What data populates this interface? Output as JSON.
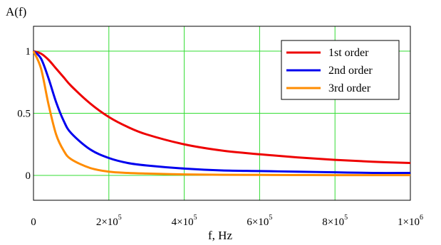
{
  "chart_data": {
    "type": "line",
    "title": "",
    "ylabel": "A(f)",
    "xlabel": "f, Hz",
    "xlim": [
      0,
      1000000
    ],
    "ylim": [
      -0.2,
      1.2
    ],
    "grid": true,
    "legend_position": "top-right",
    "x_ticks": [
      {
        "value": 0,
        "mantissa": "0",
        "exponent": ""
      },
      {
        "value": 200000,
        "mantissa": "2×10",
        "exponent": "5"
      },
      {
        "value": 400000,
        "mantissa": "4×10",
        "exponent": "5"
      },
      {
        "value": 600000,
        "mantissa": "6×10",
        "exponent": "5"
      },
      {
        "value": 800000,
        "mantissa": "8×10",
        "exponent": "5"
      },
      {
        "value": 1000000,
        "mantissa": "1×10",
        "exponent": "6"
      }
    ],
    "y_ticks": [
      {
        "value": 0,
        "label": "0"
      },
      {
        "value": 0.5,
        "label": "0.5"
      },
      {
        "value": 1,
        "label": "1"
      }
    ],
    "x": [
      0,
      20000,
      40000,
      60000,
      80000,
      100000,
      150000,
      200000,
      250000,
      300000,
      400000,
      500000,
      600000,
      700000,
      800000,
      900000,
      1000000
    ],
    "series": [
      {
        "name": "1st order",
        "color": "#ee0000",
        "values": [
          1.0,
          0.98,
          0.93,
          0.86,
          0.79,
          0.72,
          0.58,
          0.47,
          0.39,
          0.33,
          0.25,
          0.2,
          0.17,
          0.145,
          0.125,
          0.11,
          0.1
        ]
      },
      {
        "name": "2nd order",
        "color": "#0000ee",
        "values": [
          1.0,
          0.94,
          0.78,
          0.59,
          0.44,
          0.34,
          0.21,
          0.14,
          0.1,
          0.08,
          0.055,
          0.04,
          0.035,
          0.03,
          0.025,
          0.02,
          0.02
        ]
      },
      {
        "name": "3rd order",
        "color": "#ff8c00",
        "values": [
          1.0,
          0.86,
          0.57,
          0.33,
          0.2,
          0.13,
          0.06,
          0.03,
          0.02,
          0.015,
          0.008,
          0.005,
          0.004,
          0.003,
          0.002,
          0.002,
          0.002
        ]
      }
    ]
  }
}
